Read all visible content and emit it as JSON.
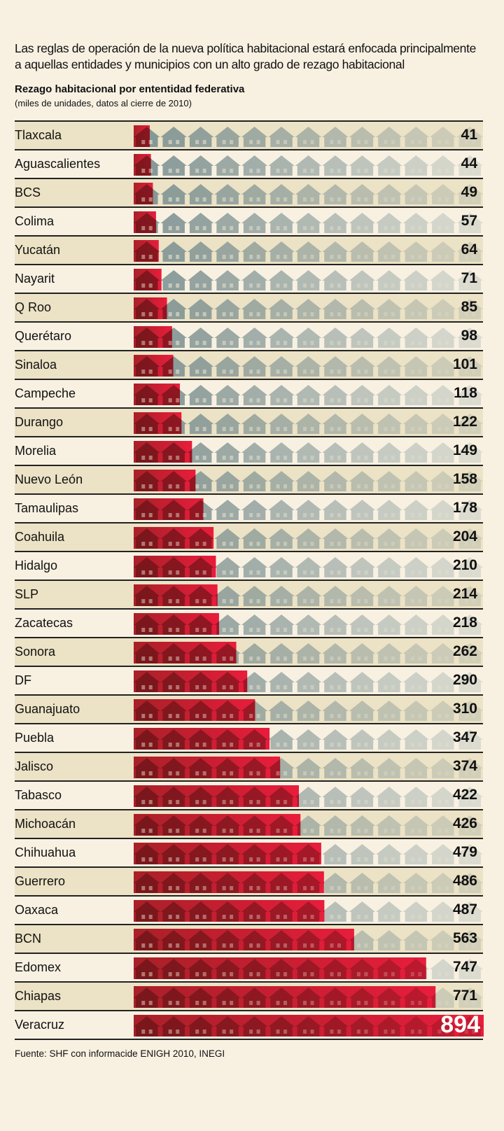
{
  "intro": "Las reglas de operación de la nueva política habitacional estará enfocada principalmente a aquellas entidades y municipios con un alto grado de rezago habitacional",
  "chart_data": {
    "type": "bar",
    "title": "Rezago habitacional por ententidad federativa",
    "subtitle": "(miles de unidades, datos al cierre de 2010)",
    "categories": [
      "Tlaxcala",
      "Aguascalientes",
      "BCS",
      "Colima",
      "Yucatán",
      "Nayarit",
      "Q Roo",
      "Querétaro",
      "Sinaloa",
      "Campeche",
      "Durango",
      "Morelia",
      "Nuevo León",
      "Tamaulipas",
      "Coahuila",
      "Hidalgo",
      "SLP",
      "Zacatecas",
      "Sonora",
      "DF",
      "Guanajuato",
      "Puebla",
      "Jalisco",
      "Tabasco",
      "Michoacán",
      "Chihuahua",
      "Guerrero",
      "Oaxaca",
      "BCN",
      "Edomex",
      "Chiapas",
      "Veracruz"
    ],
    "values": [
      41,
      44,
      49,
      57,
      64,
      71,
      85,
      98,
      101,
      118,
      122,
      149,
      158,
      178,
      204,
      210,
      214,
      218,
      262,
      290,
      310,
      347,
      374,
      422,
      426,
      479,
      486,
      487,
      563,
      747,
      771,
      894
    ],
    "xlim": [
      0,
      894
    ],
    "colors": {
      "bar": "#e01f3a",
      "bar_dark": "#7a1a1e",
      "house": "#8c9a9a"
    }
  },
  "source": "Fuente: SHF con informacide ENIGH 2010, INEGI"
}
